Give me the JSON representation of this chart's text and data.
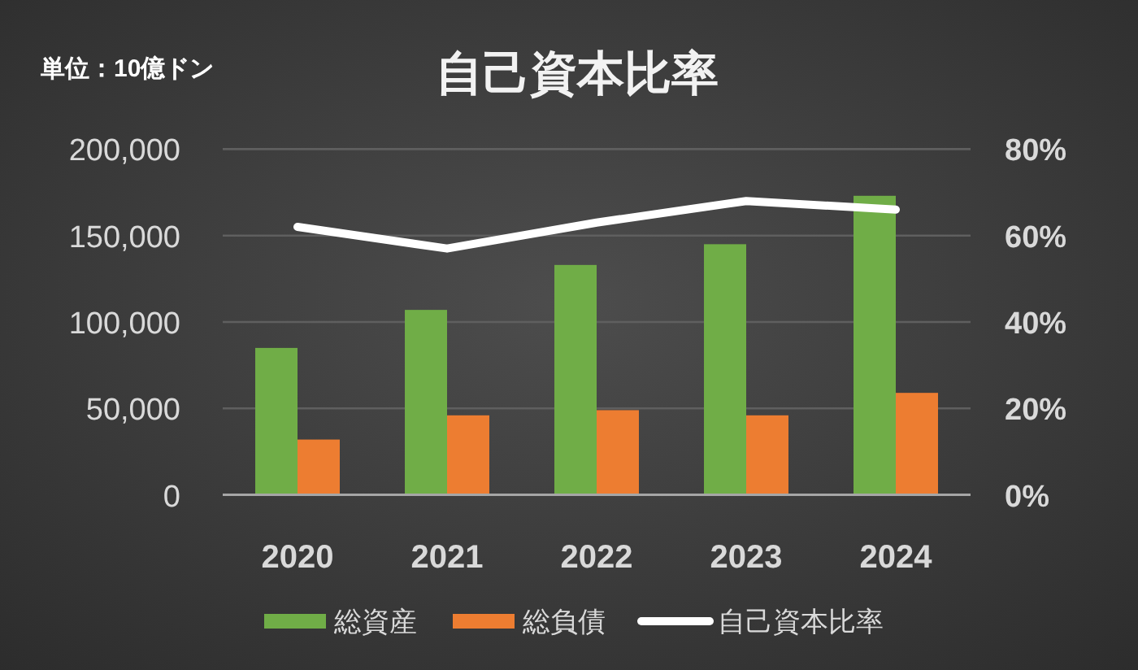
{
  "chart_data": {
    "type": "bar",
    "title": "自己資本比率",
    "annotations": [
      "単位：10億ドン"
    ],
    "categories": [
      "2020",
      "2021",
      "2022",
      "2023",
      "2024"
    ],
    "series": [
      {
        "name": "総資産",
        "color": "#70ad47",
        "values": [
          85000,
          107000,
          133000,
          145000,
          173000
        ]
      },
      {
        "name": "総負債",
        "color": "#ed7d31",
        "values": [
          32000,
          46000,
          49000,
          46000,
          59000
        ]
      },
      {
        "name": "自己資本比率",
        "type": "line",
        "axis": "y2",
        "color": "#ffffff",
        "values": [
          62,
          57,
          63,
          68,
          66
        ]
      }
    ],
    "ylim": [
      0,
      200000
    ],
    "yticks": [
      0,
      {
        "value": 50000,
        "label": "50,000"
      },
      {
        "value": 100000,
        "label": "100,000"
      },
      {
        "value": 150000,
        "label": "150,000"
      },
      {
        "value": 200000,
        "label": "200,000"
      }
    ],
    "y2lim": [
      0,
      80
    ],
    "y2ticks": [
      {
        "value": 0,
        "label": "0%"
      },
      {
        "value": 20,
        "label": "20%"
      },
      {
        "value": 40,
        "label": "40%"
      },
      {
        "value": 60,
        "label": "60%"
      },
      {
        "value": 80,
        "label": "80%"
      }
    ],
    "grid": "y",
    "legend": "bottom"
  }
}
